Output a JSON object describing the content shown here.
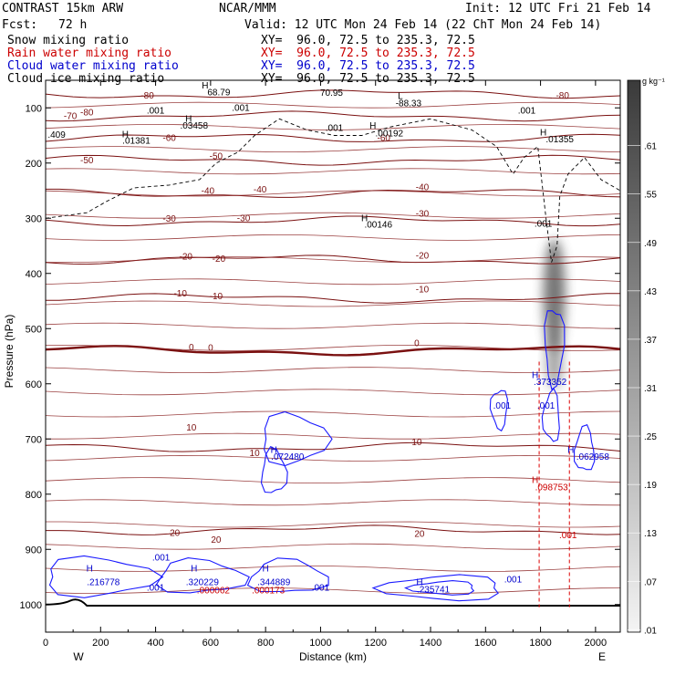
{
  "header": {
    "model": "CONTRAST 15km ARW",
    "org": "NCAR/MMM",
    "init": "Init: 12 UTC Fri 21 Feb 14",
    "fcst_label": "Fcst:",
    "fcst_value": "72 h",
    "valid": "Valid: 12 UTC Mon 24 Feb 14 (22 ChT Mon 24 Feb 14)"
  },
  "fields": [
    {
      "name": "Snow mixing ratio",
      "xy": "XY=  96.0, 72.5 to 235.3, 72.5",
      "color": "#000000"
    },
    {
      "name": "Rain water mixing ratio",
      "xy": "XY=  96.0, 72.5 to 235.3, 72.5",
      "color": "#cc0000"
    },
    {
      "name": "Cloud water mixing ratio",
      "xy": "XY=  96.0, 72.5 to 235.3, 72.5",
      "color": "#0000cc"
    },
    {
      "name": "Cloud ice mixing ratio",
      "xy": "XY=  96.0, 72.5 to 235.3, 72.5",
      "color": "#000000"
    }
  ],
  "chart_data": {
    "type": "contour",
    "xlabel": "Distance (km)",
    "ylabel": "Pressure (hPa)",
    "xlim": [
      0,
      2090
    ],
    "ylim": [
      1050,
      50
    ],
    "x_ticks": [
      0,
      200,
      400,
      600,
      800,
      1000,
      1200,
      1400,
      1600,
      1800,
      2000
    ],
    "y_ticks": [
      100,
      200,
      300,
      400,
      500,
      600,
      700,
      800,
      900,
      1000
    ],
    "west_label": "W",
    "east_label": "E",
    "colorbar": {
      "units": "g kg⁻¹",
      "levels": [
        ".61",
        ".55",
        ".49",
        ".43",
        ".37",
        ".31",
        ".25",
        ".19",
        ".13",
        ".07",
        ".01"
      ]
    },
    "isotherms": [
      {
        "label": "-80",
        "p": 75
      },
      {
        "label": "-70",
        "p": 115
      },
      {
        "label": "-60",
        "p": 155
      },
      {
        "label": "-50",
        "p": 195
      },
      {
        "label": "-40",
        "p": 255
      },
      {
        "label": "-30",
        "p": 305
      },
      {
        "label": "-20",
        "p": 375
      },
      {
        "label": "-10",
        "p": 445
      },
      {
        "label": "0",
        "p": 540
      },
      {
        "label": "10",
        "p": 715
      },
      {
        "label": "20",
        "p": 865
      }
    ],
    "temperature_labels": [
      {
        "text": "-80",
        "x": 370,
        "p": 83
      },
      {
        "text": "-80",
        "x": 1880,
        "p": 83
      },
      {
        "text": "-80",
        "x": 150,
        "p": 114
      },
      {
        "text": "-70",
        "x": 90,
        "p": 120
      },
      {
        "text": "-60",
        "x": 450,
        "p": 160
      },
      {
        "text": "-60",
        "x": 1230,
        "p": 160
      },
      {
        "text": "-50",
        "x": 150,
        "p": 200
      },
      {
        "text": "-50",
        "x": 620,
        "p": 193
      },
      {
        "text": "-40",
        "x": 590,
        "p": 256
      },
      {
        "text": "-40",
        "x": 780,
        "p": 253
      },
      {
        "text": "-40",
        "x": 1370,
        "p": 249
      },
      {
        "text": "-30",
        "x": 450,
        "p": 306
      },
      {
        "text": "-30",
        "x": 720,
        "p": 305
      },
      {
        "text": "-30",
        "x": 1370,
        "p": 297
      },
      {
        "text": "-20",
        "x": 510,
        "p": 375
      },
      {
        "text": "-20",
        "x": 630,
        "p": 379
      },
      {
        "text": "-20",
        "x": 1370,
        "p": 373
      },
      {
        "text": "-10",
        "x": 490,
        "p": 442
      },
      {
        "text": "-10",
        "x": 620,
        "p": 447
      },
      {
        "text": "-10",
        "x": 1370,
        "p": 434
      },
      {
        "text": "0",
        "x": 530,
        "p": 539
      },
      {
        "text": "0",
        "x": 600,
        "p": 540
      },
      {
        "text": "0",
        "x": 1350,
        "p": 532
      },
      {
        "text": "10",
        "x": 530,
        "p": 685
      },
      {
        "text": "10",
        "x": 760,
        "p": 731
      },
      {
        "text": "10",
        "x": 1350,
        "p": 711
      },
      {
        "text": "20",
        "x": 470,
        "p": 876
      },
      {
        "text": "20",
        "x": 620,
        "p": 888
      },
      {
        "text": "20",
        "x": 1360,
        "p": 877
      }
    ],
    "cloud_ice_labels": [
      {
        "text": "H",
        "x": 580,
        "p": 65,
        "color": "#000000"
      },
      {
        "text": "68.79",
        "x": 630,
        "p": 77,
        "color": "#000000"
      },
      {
        "text": "70.95",
        "x": 1040,
        "p": 78,
        "color": "#000000"
      },
      {
        "text": "L",
        "x": 1290,
        "p": 84,
        "color": "#000000"
      },
      {
        "text": "-88.33",
        "x": 1320,
        "p": 97,
        "color": "#000000"
      },
      {
        "text": ".001",
        "x": 400,
        "p": 110,
        "color": "#000000"
      },
      {
        "text": ".001",
        "x": 710,
        "p": 105,
        "color": "#000000"
      },
      {
        "text": ".001",
        "x": 1750,
        "p": 110,
        "color": "#000000"
      },
      {
        "text": "H",
        "x": 520,
        "p": 125,
        "color": "#000000"
      },
      {
        "text": ".03458",
        "x": 540,
        "p": 138,
        "color": "#000000"
      },
      {
        "text": ".001",
        "x": 1050,
        "p": 142,
        "color": "#000000"
      },
      {
        "text": "H",
        "x": 1190,
        "p": 138,
        "color": "#000000"
      },
      {
        "text": ".00192",
        "x": 1250,
        "p": 152,
        "color": "#000000"
      },
      {
        "text": ".409",
        "x": 40,
        "p": 154,
        "color": "#000000"
      },
      {
        "text": "H",
        "x": 290,
        "p": 153,
        "color": "#000000"
      },
      {
        "text": ".01381",
        "x": 330,
        "p": 165,
        "color": "#000000"
      },
      {
        "text": "H",
        "x": 1810,
        "p": 150,
        "color": "#000000"
      },
      {
        "text": ".01355",
        "x": 1870,
        "p": 162,
        "color": "#000000"
      },
      {
        "text": "H",
        "x": 1160,
        "p": 305,
        "color": "#000000"
      },
      {
        "text": ".00146",
        "x": 1210,
        "p": 317,
        "color": "#000000"
      },
      {
        "text": ".001",
        "x": 1810,
        "p": 315,
        "color": "#000000"
      }
    ],
    "cloud_water_labels": [
      {
        "text": "H",
        "x": 1780,
        "p": 590,
        "color": "#0000cc"
      },
      {
        "text": ".373352",
        "x": 1835,
        "p": 602,
        "color": "#0000cc"
      },
      {
        "text": ".001",
        "x": 1660,
        "p": 645,
        "color": "#0000cc"
      },
      {
        "text": ".001",
        "x": 1820,
        "p": 645,
        "color": "#0000cc"
      },
      {
        "text": "H",
        "x": 830,
        "p": 725,
        "color": "#0000cc"
      },
      {
        "text": ".072480",
        "x": 880,
        "p": 738,
        "color": "#0000cc"
      },
      {
        "text": "H",
        "x": 1910,
        "p": 725,
        "color": "#0000cc"
      },
      {
        "text": ".062958",
        "x": 1990,
        "p": 738,
        "color": "#0000cc"
      },
      {
        "text": ".001",
        "x": 420,
        "p": 920,
        "color": "#0000cc"
      },
      {
        "text": "H",
        "x": 160,
        "p": 940,
        "color": "#0000cc"
      },
      {
        "text": ".216778",
        "x": 210,
        "p": 965,
        "color": "#0000cc"
      },
      {
        "text": ".001",
        "x": 400,
        "p": 975,
        "color": "#0000cc"
      },
      {
        "text": "H",
        "x": 540,
        "p": 940,
        "color": "#0000cc"
      },
      {
        "text": ".320229",
        "x": 570,
        "p": 965,
        "color": "#0000cc"
      },
      {
        "text": "H",
        "x": 800,
        "p": 940,
        "color": "#0000cc"
      },
      {
        "text": ".344889",
        "x": 830,
        "p": 965,
        "color": "#0000cc"
      },
      {
        "text": ".001",
        "x": 1000,
        "p": 975,
        "color": "#0000cc"
      },
      {
        "text": "H",
        "x": 1360,
        "p": 965,
        "color": "#0000cc"
      },
      {
        "text": ".235741",
        "x": 1410,
        "p": 978,
        "color": "#0000cc"
      },
      {
        "text": ".001",
        "x": 1700,
        "p": 960,
        "color": "#0000cc"
      }
    ],
    "rain_labels": [
      {
        "text": "H",
        "x": 1780,
        "p": 780,
        "color": "#cc0000"
      },
      {
        "text": ".098753",
        "x": 1840,
        "p": 793,
        "color": "#cc0000"
      },
      {
        "text": ".001",
        "x": 1900,
        "p": 880,
        "color": "#cc0000"
      },
      {
        "text": ".000062",
        "x": 610,
        "p": 980,
        "color": "#cc0000"
      },
      {
        "text": ".000173",
        "x": 810,
        "p": 980,
        "color": "#cc0000"
      }
    ]
  }
}
